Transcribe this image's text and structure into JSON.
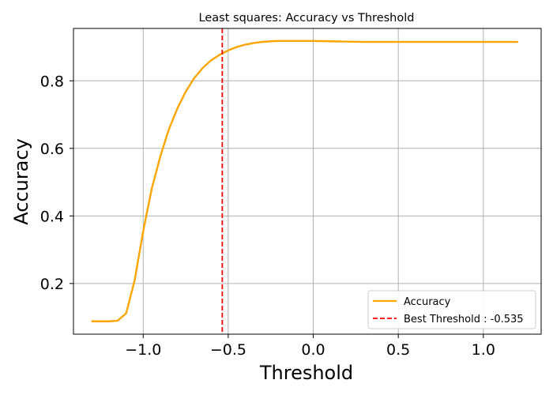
{
  "chart_data": {
    "type": "line",
    "title": "Least squares: Accuracy vs Threshold",
    "xlabel": "Threshold",
    "ylabel": "Accuracy",
    "xlim": [
      -1.41,
      1.34
    ],
    "ylim": [
      0.05,
      0.955
    ],
    "xticks": [
      -1.0,
      -0.5,
      0.0,
      0.5,
      1.0
    ],
    "xtick_labels": [
      "−1.0",
      "−0.5",
      "0.0",
      "0.5",
      "1.0"
    ],
    "yticks": [
      0.2,
      0.4,
      0.6,
      0.8
    ],
    "ytick_labels": [
      "0.2",
      "0.4",
      "0.6",
      "0.8"
    ],
    "grid": true,
    "legend_position": "lower-right",
    "series": [
      {
        "name": "Accuracy",
        "color": "#FFA500",
        "style": "solid",
        "x": [
          -1.3,
          -1.25,
          -1.2,
          -1.15,
          -1.1,
          -1.05,
          -1.0,
          -0.95,
          -0.9,
          -0.85,
          -0.8,
          -0.75,
          -0.7,
          -0.65,
          -0.6,
          -0.55,
          -0.5,
          -0.45,
          -0.4,
          -0.35,
          -0.3,
          -0.25,
          -0.2,
          -0.15,
          -0.1,
          -0.05,
          0.0,
          0.1,
          0.2,
          0.3,
          0.4,
          0.6,
          0.8,
          1.0,
          1.2
        ],
        "y": [
          0.088,
          0.088,
          0.088,
          0.09,
          0.112,
          0.21,
          0.355,
          0.48,
          0.575,
          0.655,
          0.717,
          0.768,
          0.808,
          0.838,
          0.861,
          0.877,
          0.89,
          0.9,
          0.907,
          0.912,
          0.915,
          0.917,
          0.918,
          0.918,
          0.918,
          0.918,
          0.918,
          0.917,
          0.916,
          0.915,
          0.915,
          0.915,
          0.915,
          0.915,
          0.915
        ]
      }
    ],
    "vline": {
      "name": "Best Threshold : -0.535",
      "x": -0.535,
      "color": "#FF0000",
      "style": "dashed"
    }
  }
}
